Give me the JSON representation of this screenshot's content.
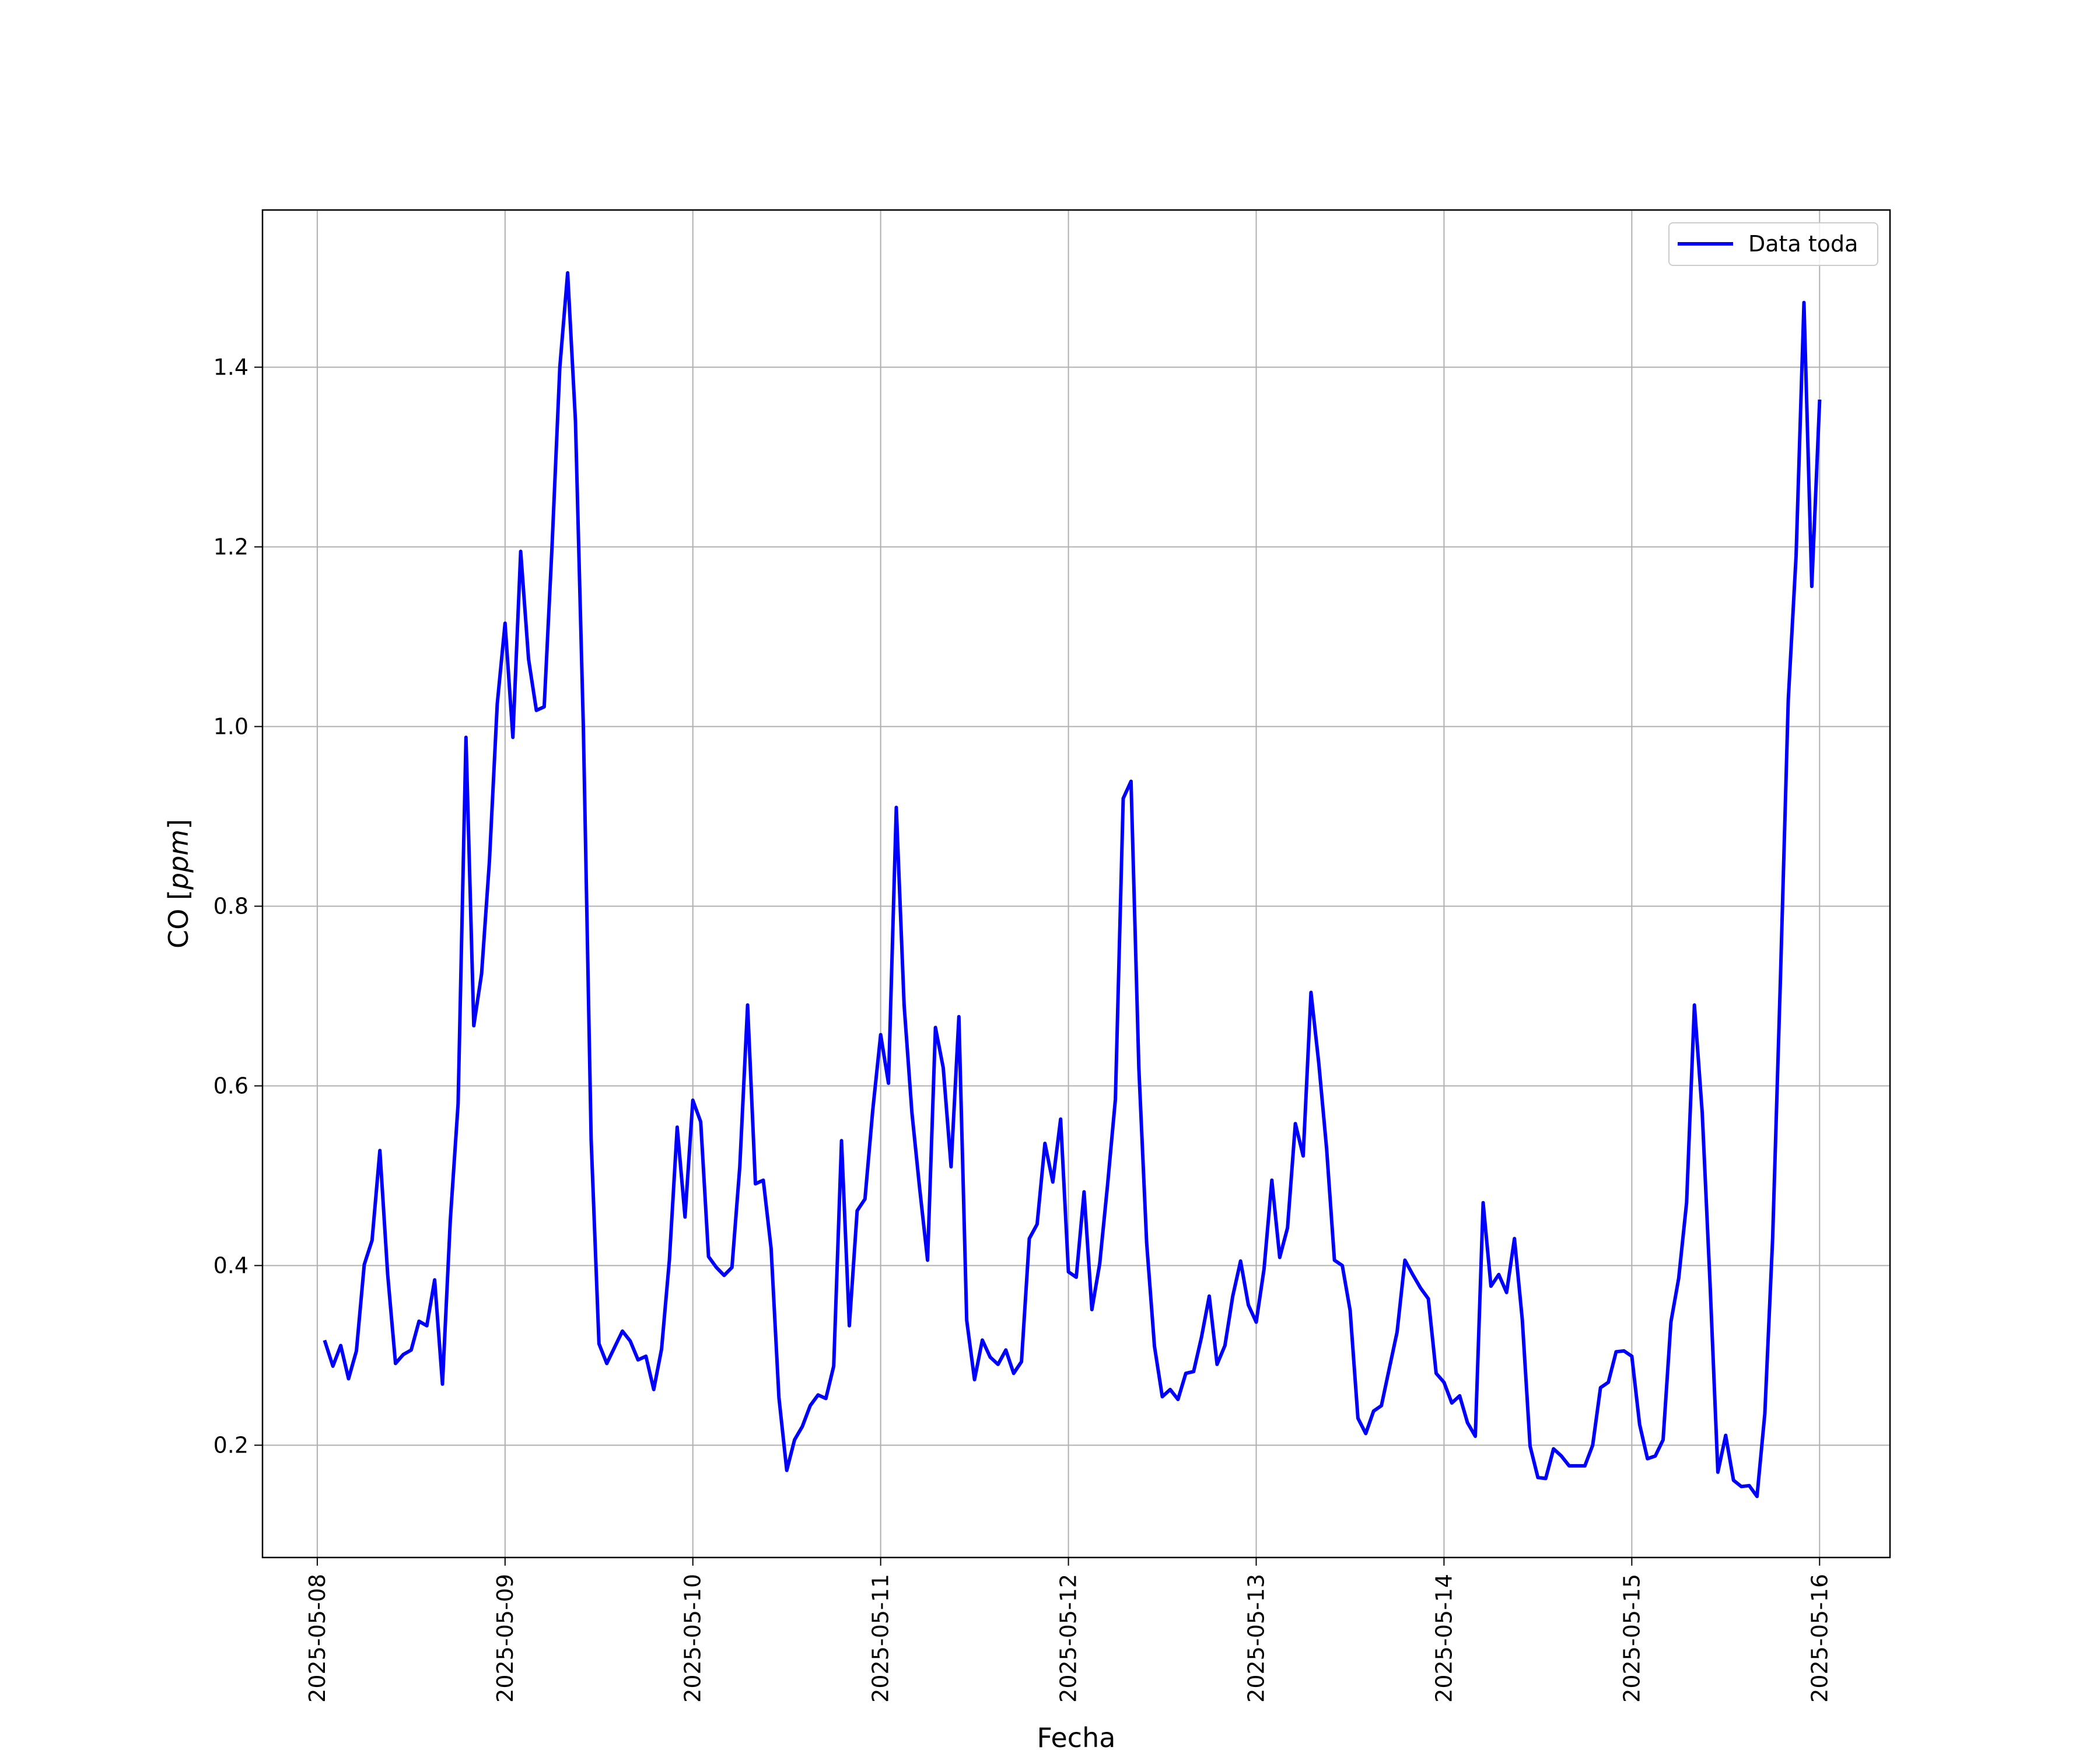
{
  "chart_data": {
    "type": "line",
    "xlabel": "Fecha",
    "ylabel": "CO [ppm]",
    "ylim": [
      0.075,
      1.575
    ],
    "xlim": [
      "2025-05-07 17:00",
      "2025-05-16 09:00"
    ],
    "x_ticks": [
      "2025-05-08",
      "2025-05-09",
      "2025-05-10",
      "2025-05-11",
      "2025-05-12",
      "2025-05-13",
      "2025-05-14",
      "2025-05-15",
      "2025-05-16"
    ],
    "y_ticks": [
      "0.2",
      "0.4",
      "0.6",
      "0.8",
      "1.0",
      "1.2",
      "1.4"
    ],
    "grid": true,
    "legend_position": "upper-right",
    "series": [
      {
        "name": "Data toda",
        "color": "#0000ff",
        "x": [
          "2025-05-08 01:00",
          "2025-05-08 02:00",
          "2025-05-08 03:00",
          "2025-05-08 04:00",
          "2025-05-08 05:00",
          "2025-05-08 06:00",
          "2025-05-08 07:00",
          "2025-05-08 08:00",
          "2025-05-08 09:00",
          "2025-05-08 10:00",
          "2025-05-08 11:00",
          "2025-05-08 12:00",
          "2025-05-08 13:00",
          "2025-05-08 14:00",
          "2025-05-08 15:00",
          "2025-05-08 16:00",
          "2025-05-08 17:00",
          "2025-05-08 18:00",
          "2025-05-08 19:00",
          "2025-05-08 20:00",
          "2025-05-08 21:00",
          "2025-05-08 22:00",
          "2025-05-08 23:00",
          "2025-05-09 00:00",
          "2025-05-09 01:00",
          "2025-05-09 02:00",
          "2025-05-09 03:00",
          "2025-05-09 04:00",
          "2025-05-09 05:00",
          "2025-05-09 06:00",
          "2025-05-09 07:00",
          "2025-05-09 08:00",
          "2025-05-09 09:00",
          "2025-05-09 10:00",
          "2025-05-09 11:00",
          "2025-05-09 12:00",
          "2025-05-09 13:00",
          "2025-05-09 14:00",
          "2025-05-09 15:00",
          "2025-05-09 16:00",
          "2025-05-09 17:00",
          "2025-05-09 18:00",
          "2025-05-09 19:00",
          "2025-05-09 20:00",
          "2025-05-09 21:00",
          "2025-05-09 22:00",
          "2025-05-09 23:00",
          "2025-05-10 00:00",
          "2025-05-10 01:00",
          "2025-05-10 02:00",
          "2025-05-10 03:00",
          "2025-05-10 04:00",
          "2025-05-10 05:00",
          "2025-05-10 06:00",
          "2025-05-10 07:00",
          "2025-05-10 08:00",
          "2025-05-10 09:00",
          "2025-05-10 10:00",
          "2025-05-10 11:00",
          "2025-05-10 12:00",
          "2025-05-10 13:00",
          "2025-05-10 14:00",
          "2025-05-10 15:00",
          "2025-05-10 16:00",
          "2025-05-10 17:00",
          "2025-05-10 18:00",
          "2025-05-10 19:00",
          "2025-05-10 20:00",
          "2025-05-10 21:00",
          "2025-05-10 22:00",
          "2025-05-10 23:00",
          "2025-05-11 00:00",
          "2025-05-11 01:00",
          "2025-05-11 02:00",
          "2025-05-11 03:00",
          "2025-05-11 04:00",
          "2025-05-11 05:00",
          "2025-05-11 06:00",
          "2025-05-11 07:00",
          "2025-05-11 08:00",
          "2025-05-11 09:00",
          "2025-05-11 10:00",
          "2025-05-11 11:00",
          "2025-05-11 12:00",
          "2025-05-11 13:00",
          "2025-05-11 14:00",
          "2025-05-11 15:00",
          "2025-05-11 16:00",
          "2025-05-11 17:00",
          "2025-05-11 18:00",
          "2025-05-11 19:00",
          "2025-05-11 20:00",
          "2025-05-11 21:00",
          "2025-05-11 22:00",
          "2025-05-11 23:00",
          "2025-05-12 00:00",
          "2025-05-12 01:00",
          "2025-05-12 02:00",
          "2025-05-12 03:00",
          "2025-05-12 04:00",
          "2025-05-12 05:00",
          "2025-05-12 06:00",
          "2025-05-12 07:00",
          "2025-05-12 08:00",
          "2025-05-12 09:00",
          "2025-05-12 10:00",
          "2025-05-12 11:00",
          "2025-05-12 12:00",
          "2025-05-12 13:00",
          "2025-05-12 14:00",
          "2025-05-12 15:00",
          "2025-05-12 16:00",
          "2025-05-12 17:00",
          "2025-05-12 18:00",
          "2025-05-12 19:00",
          "2025-05-12 20:00",
          "2025-05-12 21:00",
          "2025-05-12 22:00",
          "2025-05-12 23:00",
          "2025-05-13 00:00",
          "2025-05-13 01:00",
          "2025-05-13 02:00",
          "2025-05-13 03:00",
          "2025-05-13 04:00",
          "2025-05-13 05:00",
          "2025-05-13 06:00",
          "2025-05-13 07:00",
          "2025-05-13 08:00",
          "2025-05-13 09:00",
          "2025-05-13 10:00",
          "2025-05-13 11:00",
          "2025-05-13 12:00",
          "2025-05-13 13:00",
          "2025-05-13 14:00",
          "2025-05-13 15:00",
          "2025-05-13 16:00",
          "2025-05-13 17:00",
          "2025-05-13 18:00",
          "2025-05-13 19:00",
          "2025-05-13 20:00",
          "2025-05-13 21:00",
          "2025-05-13 22:00",
          "2025-05-13 23:00",
          "2025-05-14 00:00",
          "2025-05-14 01:00",
          "2025-05-14 02:00",
          "2025-05-14 03:00",
          "2025-05-14 04:00",
          "2025-05-14 05:00",
          "2025-05-14 06:00",
          "2025-05-14 07:00",
          "2025-05-14 08:00",
          "2025-05-14 09:00",
          "2025-05-14 10:00",
          "2025-05-14 11:00",
          "2025-05-14 12:00",
          "2025-05-14 13:00",
          "2025-05-14 14:00",
          "2025-05-14 15:00",
          "2025-05-14 16:00",
          "2025-05-14 17:00",
          "2025-05-14 18:00",
          "2025-05-14 19:00",
          "2025-05-14 20:00",
          "2025-05-14 21:00",
          "2025-05-14 22:00",
          "2025-05-14 23:00",
          "2025-05-15 00:00",
          "2025-05-15 01:00",
          "2025-05-15 02:00",
          "2025-05-15 03:00",
          "2025-05-15 04:00",
          "2025-05-15 05:00",
          "2025-05-15 06:00",
          "2025-05-15 07:00",
          "2025-05-15 08:00",
          "2025-05-15 09:00",
          "2025-05-15 10:00",
          "2025-05-15 11:00",
          "2025-05-15 12:00",
          "2025-05-15 13:00",
          "2025-05-15 14:00",
          "2025-05-15 15:00",
          "2025-05-15 16:00",
          "2025-05-15 17:00",
          "2025-05-15 18:00",
          "2025-05-15 19:00",
          "2025-05-15 20:00",
          "2025-05-15 21:00",
          "2025-05-15 22:00",
          "2025-05-15 23:00",
          "2025-05-16 00:00"
        ],
        "values": [
          0.315,
          0.288,
          0.311,
          0.274,
          0.305,
          0.401,
          0.428,
          0.528,
          0.39,
          0.291,
          0.301,
          0.306,
          0.338,
          0.333,
          0.384,
          0.268,
          0.45,
          0.58,
          0.988,
          0.667,
          0.725,
          0.85,
          1.025,
          1.115,
          0.988,
          1.195,
          1.075,
          1.018,
          1.022,
          1.2,
          1.4,
          1.505,
          1.34,
          1.0,
          0.54,
          0.313,
          0.291,
          0.309,
          0.327,
          0.316,
          0.295,
          0.299,
          0.262,
          0.307,
          0.406,
          0.554,
          0.454,
          0.584,
          0.56,
          0.41,
          0.398,
          0.389,
          0.398,
          0.51,
          0.69,
          0.491,
          0.495,
          0.419,
          0.253,
          0.172,
          0.206,
          0.221,
          0.244,
          0.256,
          0.252,
          0.288,
          0.539,
          0.333,
          0.461,
          0.474,
          0.574,
          0.657,
          0.603,
          0.91,
          0.69,
          0.57,
          0.485,
          0.406,
          0.665,
          0.62,
          0.51,
          0.677,
          0.339,
          0.273,
          0.317,
          0.298,
          0.29,
          0.306,
          0.28,
          0.293,
          0.43,
          0.446,
          0.536,
          0.493,
          0.563,
          0.393,
          0.387,
          0.482,
          0.351,
          0.402,
          0.49,
          0.585,
          0.92,
          0.939,
          0.62,
          0.425,
          0.31,
          0.254,
          0.262,
          0.251,
          0.28,
          0.282,
          0.32,
          0.366,
          0.29,
          0.311,
          0.366,
          0.405,
          0.356,
          0.337,
          0.396,
          0.495,
          0.409,
          0.442,
          0.558,
          0.522,
          0.704,
          0.625,
          0.53,
          0.406,
          0.4,
          0.35,
          0.23,
          0.213,
          0.238,
          0.244,
          0.285,
          0.326,
          0.406,
          0.39,
          0.375,
          0.363,
          0.28,
          0.27,
          0.247,
          0.255,
          0.225,
          0.21,
          0.47,
          0.377,
          0.39,
          0.37,
          0.43,
          0.34,
          0.199,
          0.164,
          0.163,
          0.196,
          0.188,
          0.177,
          0.177,
          0.177,
          0.2,
          0.264,
          0.27,
          0.304,
          0.305,
          0.299,
          0.223,
          0.185,
          0.188,
          0.206,
          0.337,
          0.386,
          0.47,
          0.69,
          0.57,
          0.38,
          0.17,
          0.211,
          0.161,
          0.154,
          0.155,
          0.143,
          0.235,
          0.43,
          0.72,
          1.03,
          1.19,
          1.472,
          1.156,
          1.362
        ]
      }
    ]
  }
}
